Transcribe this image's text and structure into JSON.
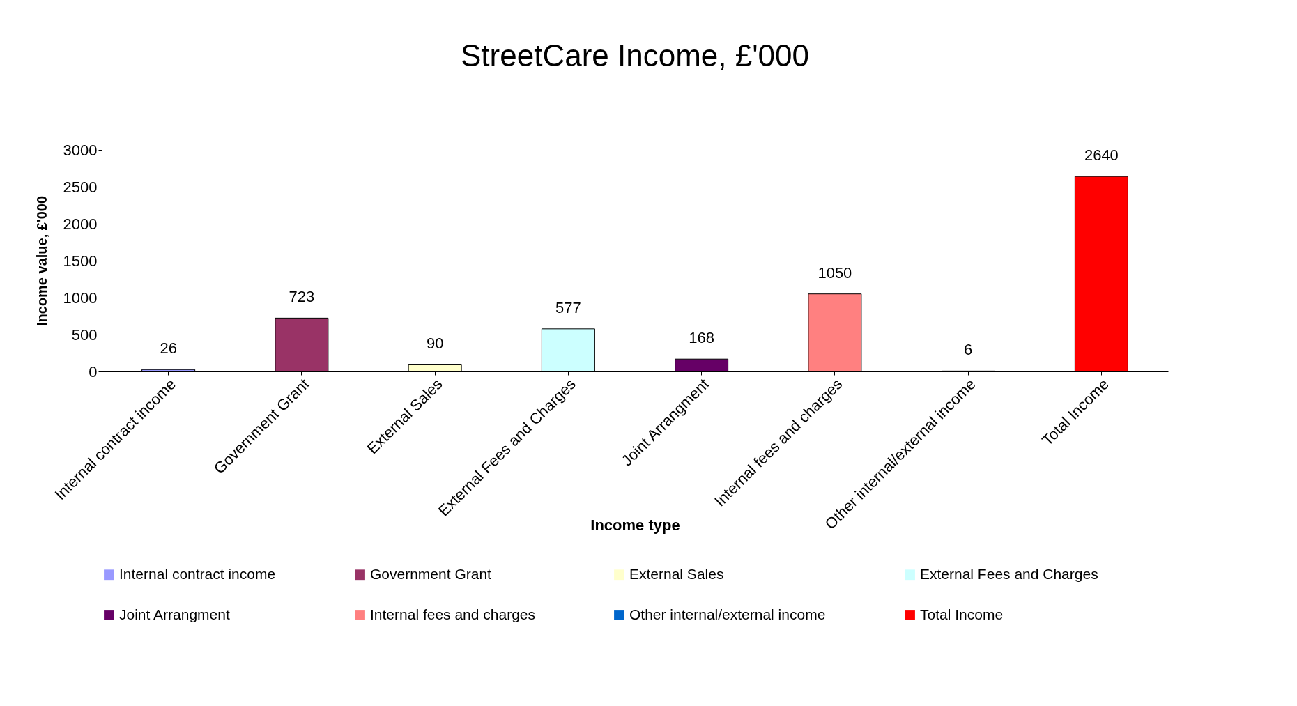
{
  "chart_data": {
    "type": "bar",
    "title": "StreetCare Income, £'000",
    "xlabel": "Income type",
    "ylabel": "Income value, £'000",
    "categories": [
      "Internal contract income",
      "Government Grant",
      "External Sales",
      "External Fees and Charges",
      "Joint Arrangment",
      "Internal fees and charges",
      "Other internal/external income",
      "Total Income"
    ],
    "series": [
      {
        "name": "Internal contract income",
        "color": "#9999ff",
        "values": [
          26,
          null,
          null,
          null,
          null,
          null,
          null,
          null
        ]
      },
      {
        "name": "Government Grant",
        "color": "#993366",
        "values": [
          null,
          723,
          null,
          null,
          null,
          null,
          null,
          null
        ]
      },
      {
        "name": "External Sales",
        "color": "#ffffcc",
        "values": [
          null,
          null,
          90,
          null,
          null,
          null,
          null,
          null
        ]
      },
      {
        "name": "External Fees and Charges",
        "color": "#ccffff",
        "values": [
          null,
          null,
          null,
          577,
          null,
          null,
          null,
          null
        ]
      },
      {
        "name": "Joint Arrangment",
        "color": "#660066",
        "values": [
          null,
          null,
          null,
          null,
          168,
          null,
          null,
          null
        ]
      },
      {
        "name": "Internal fees and charges",
        "color": "#ff8080",
        "values": [
          null,
          null,
          null,
          null,
          null,
          1050,
          null,
          null
        ]
      },
      {
        "name": "Other internal/external income",
        "color": "#0066cc",
        "values": [
          null,
          null,
          null,
          null,
          null,
          null,
          6,
          null
        ]
      },
      {
        "name": "Total Income",
        "color": "#ff0000",
        "values": [
          null,
          null,
          null,
          null,
          null,
          null,
          null,
          2640
        ]
      }
    ],
    "ylim": [
      0,
      3000
    ],
    "yticks": [
      0,
      500,
      1000,
      1500,
      2000,
      2500,
      3000
    ],
    "grid": false,
    "data_labels": true,
    "legend": "bottom"
  }
}
